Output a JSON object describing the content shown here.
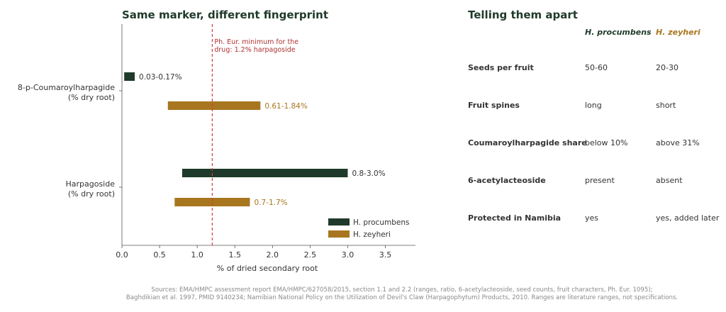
{
  "left_title": "Same marker, different fingerprint",
  "right_title": "Telling them apart",
  "chart_data": {
    "type": "bar",
    "orientation": "horizontal",
    "title": "Same marker, different fingerprint",
    "xlabel": "% of dried secondary root",
    "xlim": [
      0,
      3.9
    ],
    "xticks": [
      0.0,
      0.5,
      1.0,
      1.5,
      2.0,
      2.5,
      3.0,
      3.5
    ],
    "xtick_labels": [
      "0.0",
      "0.5",
      "1.0",
      "1.5",
      "2.0",
      "2.5",
      "3.0",
      "3.5"
    ],
    "grid": false,
    "legend_position": "bottom-right",
    "categories": [
      "8-p-Coumaroylharpagide (% dry root)",
      "Harpagoside (% dry root)"
    ],
    "category_lines": [
      [
        "8-p-Coumaroylharpagide",
        "(% dry root)"
      ],
      [
        "Harpagoside",
        "(% dry root)"
      ]
    ],
    "series": [
      {
        "name": "H. procumbens",
        "color": "#1f3a2a",
        "ranges": [
          [
            0.03,
            0.17
          ],
          [
            0.8,
            3.0
          ]
        ],
        "labels": [
          "0.03-0.17%",
          "0.8-3.0%"
        ]
      },
      {
        "name": "H. zeyheri",
        "color": "#a8761f",
        "ranges": [
          [
            0.61,
            1.84
          ],
          [
            0.7,
            1.7
          ]
        ],
        "labels": [
          "0.61-1.84%",
          "0.7-1.7%"
        ]
      }
    ],
    "reference_line": {
      "value": 1.2,
      "color": "#d23c3c",
      "label_lines": [
        "Ph. Eur. minimum for the",
        "drug: 1.2% harpagoside"
      ]
    }
  },
  "comparison": {
    "columns": [
      "H. procumbens",
      "H. zeyheri"
    ],
    "rows": [
      {
        "feature": "Seeds per fruit",
        "a": "50-60",
        "b": "20-30"
      },
      {
        "feature": "Fruit spines",
        "a": "long",
        "b": "short"
      },
      {
        "feature": "Coumaroylharpagide share",
        "a": "below 10%",
        "b": "above 31%"
      },
      {
        "feature": "6-acetylacteoside",
        "a": "present",
        "b": "absent"
      },
      {
        "feature": "Protected in Namibia",
        "a": "yes",
        "b": "yes, added later"
      }
    ]
  },
  "sources": [
    "Sources: EMA/HMPC assessment report EMA/HMPC/627058/2015, section 1.1 and 2.2 (ranges, ratio, 6-acetylacteoside, seed counts, fruit characters, Ph. Eur. 1095);",
    "Baghdikian et al. 1997, PMID 9140234; Namibian National Policy on the Utilization of Devil's Claw (Harpagophytum) Products, 2010. Ranges are literature ranges, not specifications."
  ]
}
